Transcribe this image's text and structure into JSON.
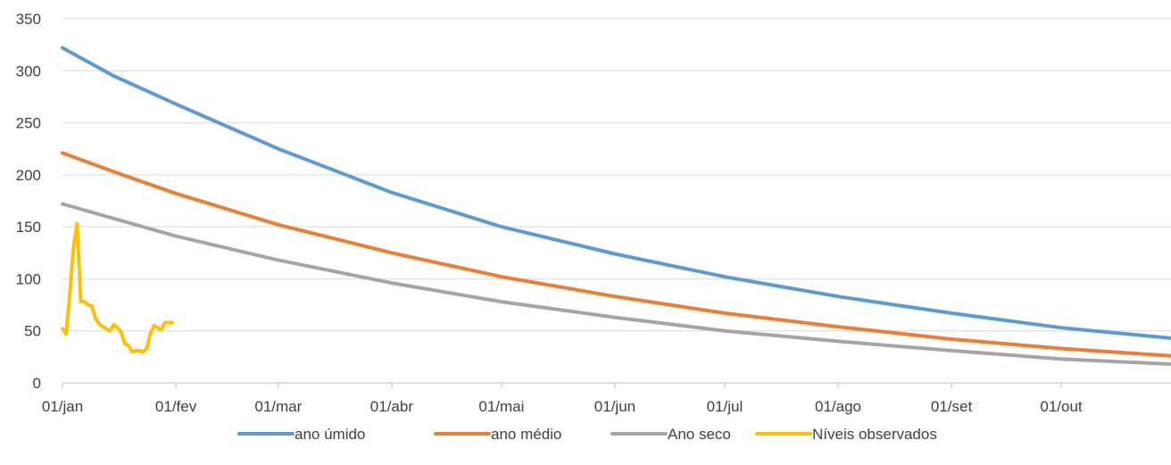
{
  "chart_data": {
    "type": "line",
    "title": "",
    "xlabel": "",
    "ylabel": "",
    "ylim": [
      0,
      350
    ],
    "y_ticks": [
      0,
      50,
      100,
      150,
      200,
      250,
      300,
      350
    ],
    "x_tick_labels": [
      "01/jan",
      "01/fev",
      "01/mar",
      "01/abr",
      "01/mai",
      "01/jun",
      "01/jul",
      "01/ago",
      "01/set",
      "01/out"
    ],
    "x_tick_dates": [
      "01-01",
      "02-01",
      "03-01",
      "04-01",
      "05-01",
      "06-01",
      "07-01",
      "08-01",
      "09-01",
      "10-01"
    ],
    "x_range": [
      "01-01",
      "10-31"
    ],
    "grid": "horizontal",
    "legend_position": "bottom",
    "series": [
      {
        "name": "ano úmido",
        "color": "#5B9BD5",
        "x": [
          "01-01",
          "01-15",
          "02-01",
          "03-01",
          "04-01",
          "05-01",
          "06-01",
          "07-01",
          "08-01",
          "09-01",
          "10-01",
          "10-31"
        ],
        "y": [
          322,
          295,
          268,
          225,
          183,
          150,
          124,
          102,
          83,
          67,
          53,
          43
        ]
      },
      {
        "name": "ano médio",
        "color": "#ED7D31",
        "x": [
          "01-01",
          "01-15",
          "02-01",
          "03-01",
          "04-01",
          "05-01",
          "06-01",
          "07-01",
          "08-01",
          "09-01",
          "10-01",
          "10-31"
        ],
        "y": [
          221,
          203,
          182,
          152,
          125,
          102,
          83,
          67,
          54,
          42,
          33,
          26
        ]
      },
      {
        "name": "Ano seco",
        "color": "#A5A5A5",
        "x": [
          "01-01",
          "01-15",
          "02-01",
          "03-01",
          "04-01",
          "05-01",
          "06-01",
          "07-01",
          "08-01",
          "09-01",
          "10-01",
          "10-31"
        ],
        "y": [
          172,
          158,
          141,
          118,
          96,
          78,
          63,
          50,
          40,
          31,
          23,
          18
        ]
      },
      {
        "name": "Níveis observados",
        "color": "#FFC000",
        "x": [
          "01-01",
          "01-02",
          "01-03",
          "01-04",
          "01-05",
          "01-06",
          "01-07",
          "01-08",
          "01-09",
          "01-10",
          "01-11",
          "01-12",
          "01-13",
          "01-14",
          "01-15",
          "01-16",
          "01-17",
          "01-18",
          "01-19",
          "01-20",
          "01-21",
          "01-22",
          "01-23",
          "01-24",
          "01-25",
          "01-26",
          "01-27",
          "01-28",
          "01-29",
          "01-30",
          "01-31"
        ],
        "y": [
          52,
          47,
          85,
          130,
          153,
          78,
          78,
          75,
          74,
          62,
          57,
          54,
          52,
          50,
          56,
          53,
          49,
          38,
          36,
          30,
          31,
          31,
          30,
          33,
          47,
          55,
          53,
          51,
          58,
          58,
          58
        ]
      }
    ]
  }
}
